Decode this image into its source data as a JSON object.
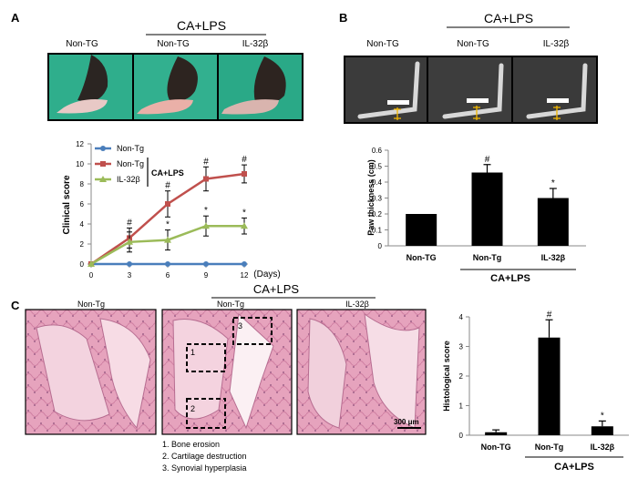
{
  "panels": {
    "a": {
      "letter": "A",
      "group_label": "CA+LPS",
      "photo_labels": [
        "Non-TG",
        "Non-TG",
        "IL-32β"
      ]
    },
    "b": {
      "letter": "B",
      "group_label": "CA+LPS",
      "xray_labels": [
        "Non-TG",
        "Non-TG",
        "IL-32β"
      ]
    },
    "c": {
      "letter": "C",
      "group_label": "CA+LPS",
      "histology_labels": [
        "Non-Tg",
        "Non-Tg",
        "IL-32β"
      ],
      "boxes": [
        "1",
        "2",
        "3"
      ],
      "scale_bar": "300 μm",
      "notes": [
        "1. Bone erosion",
        "2. Cartilage destruction",
        "3. Synovial hyperplasia"
      ]
    }
  },
  "colors": {
    "series_blue": "#4a7ebb",
    "series_red": "#c0504d",
    "series_green": "#9bbb59",
    "photo_green": "#2fae8c",
    "xray_bg": "#3d3d3d",
    "tissue_pink": "#e8a8bf",
    "bar_fill": "#000000"
  },
  "chart_data": [
    {
      "id": "clinical-score",
      "type": "line",
      "x": [
        0,
        3,
        6,
        9,
        12
      ],
      "xlabel": "(Days)",
      "ylabel": "Clinical score",
      "xticks": [
        "0",
        "3",
        "6",
        "9",
        "12"
      ],
      "yticks": [
        "0",
        "2",
        "4",
        "6",
        "8",
        "10",
        "12"
      ],
      "ylim": [
        0,
        12
      ],
      "legend_group": "CA+LPS",
      "series": [
        {
          "name": "Non-Tg",
          "values": [
            0,
            0,
            0,
            0,
            0
          ],
          "errors": [
            0,
            0,
            0,
            0,
            0
          ],
          "marks": [
            "",
            "",
            "",
            "",
            ""
          ]
        },
        {
          "name": "Non-Tg",
          "values": [
            0,
            2.6,
            6.0,
            8.5,
            9.0
          ],
          "errors": [
            0,
            1.0,
            1.3,
            1.2,
            0.9
          ],
          "marks": [
            "",
            "#",
            "#",
            "#",
            "#"
          ]
        },
        {
          "name": "IL-32β",
          "values": [
            0,
            2.2,
            2.4,
            3.8,
            3.8
          ],
          "errors": [
            0,
            1.0,
            1.0,
            1.0,
            0.8
          ],
          "marks": [
            "",
            "",
            "*",
            "*",
            "*"
          ]
        }
      ]
    },
    {
      "id": "paw-thickness",
      "type": "bar",
      "categories": [
        "Non-TG",
        "Non-Tg",
        "IL-32β"
      ],
      "values": [
        0.2,
        0.46,
        0.3
      ],
      "errors": [
        0,
        0.05,
        0.06
      ],
      "marks": [
        "",
        "#",
        "*"
      ],
      "ylabel": "Paw thickness  (cm)",
      "yticks": [
        "0",
        "0.1",
        "0.2",
        "0.3",
        "0.4",
        "0.5",
        "0.6"
      ],
      "ylim": [
        0,
        0.6
      ],
      "group_label": "CA+LPS"
    },
    {
      "id": "histological-score",
      "type": "bar",
      "categories": [
        "Non-TG",
        "Non-Tg",
        "IL-32β"
      ],
      "values": [
        0.1,
        3.3,
        0.3
      ],
      "errors": [
        0.08,
        0.6,
        0.18
      ],
      "marks": [
        "",
        "#",
        "*"
      ],
      "ylabel": "Histological score",
      "yticks": [
        "0",
        "1",
        "2",
        "3",
        "4"
      ],
      "ylim": [
        0,
        4
      ],
      "group_label": "CA+LPS"
    }
  ]
}
